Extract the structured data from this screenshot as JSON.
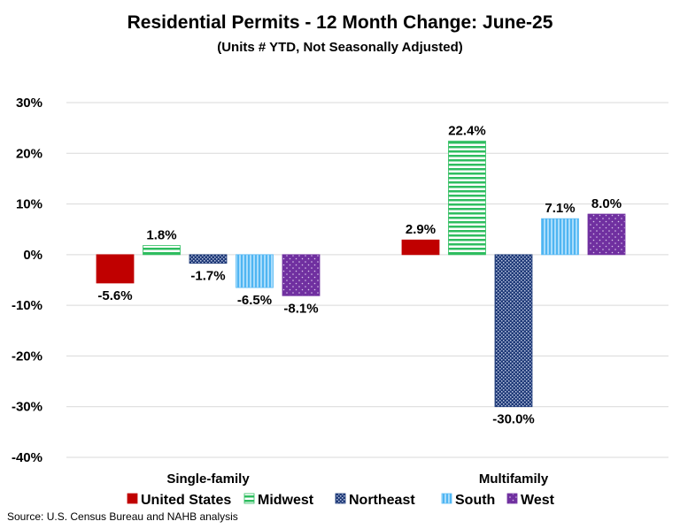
{
  "chart_data": {
    "type": "bar",
    "title": "Residential Permits - 12 Month Change:  June-25",
    "subtitle": "(Units # YTD, Not Seasonally Adjusted)",
    "categories": [
      "Single-family",
      "Multifamily"
    ],
    "series": [
      {
        "name": "United States",
        "values": [
          -5.6,
          2.9
        ],
        "color": "#c00000",
        "pattern": "solid"
      },
      {
        "name": "Midwest",
        "values": [
          1.8,
          22.4
        ],
        "color": "#2ebd5f",
        "pattern": "horizontal-lines"
      },
      {
        "name": "Northeast",
        "values": [
          -1.7,
          -30.0
        ],
        "color": "#1f3a78",
        "pattern": "checker"
      },
      {
        "name": "South",
        "values": [
          -6.5,
          7.1
        ],
        "color": "#5bbcf5",
        "pattern": "vertical-lines"
      },
      {
        "name": "West",
        "values": [
          -8.1,
          8.0
        ],
        "color": "#7030a0",
        "pattern": "dots"
      }
    ],
    "ylim": [
      -40,
      30
    ],
    "yticks": [
      30,
      20,
      10,
      0,
      -10,
      -20,
      -30,
      -40
    ],
    "ytick_format": "percent",
    "grid": true,
    "legend": "bottom",
    "source": "Source: U.S. Census Bureau and NAHB analysis"
  }
}
